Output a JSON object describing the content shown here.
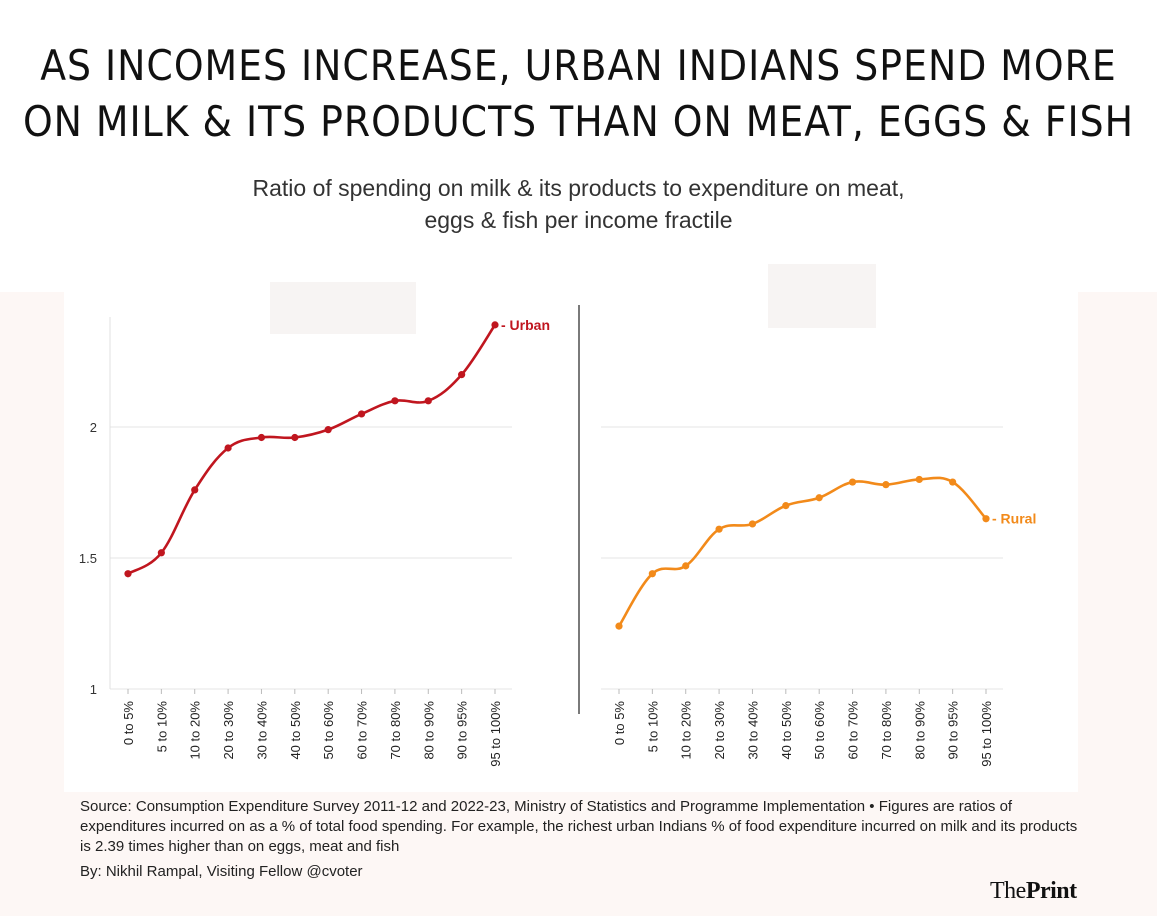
{
  "title_lines": [
    "AS INCOMES INCREASE, URBAN INDIANS SPEND MORE",
    "ON MILK & ITS PRODUCTS THAN ON MEAT, EGGS & FISH"
  ],
  "subtitle_lines": [
    "Ratio of spending on milk & its products to expenditure on meat,",
    "eggs & fish per income fractile"
  ],
  "chart_data": {
    "type": "line",
    "categories": [
      "0 to 5%",
      "5 to 10%",
      "10 to 20%",
      "20 to 30%",
      "30 to 40%",
      "40 to 50%",
      "50 to 60%",
      "60 to 70%",
      "70 to 80%",
      "80 to 90%",
      "90 to 95%",
      "95 to 100%"
    ],
    "y_ticks": [
      "1",
      "1.5",
      "2"
    ],
    "ylim": [
      1,
      2.42
    ],
    "grid": "horizontal",
    "panels": [
      {
        "series": [
          {
            "name": "Urban",
            "color": "#c0161f",
            "values": [
              1.44,
              1.52,
              1.76,
              1.92,
              1.96,
              1.96,
              1.99,
              2.05,
              2.1,
              2.1,
              2.2,
              2.39
            ]
          }
        ]
      },
      {
        "series": [
          {
            "name": "Rural",
            "color": "#f28a1a",
            "values": [
              1.24,
              1.44,
              1.47,
              1.61,
              1.63,
              1.7,
              1.73,
              1.79,
              1.78,
              1.8,
              1.79,
              1.65
            ]
          }
        ]
      }
    ]
  },
  "source_text": "Source: Consumption Expenditure Survey 2011-12 and 2022-23, Ministry of Statistics and Programme Implementation • Figures are ratios of expenditures incurred on as a % of total food spending. For example, the richest urban Indians % of food expenditure incurred on milk and its products is 2.39 times higher than on eggs, meat and fish",
  "byline_text": "By: Nikhil Rampal, Visiting Fellow @cvoter",
  "logo": {
    "part1": "The",
    "part2": "Print"
  }
}
